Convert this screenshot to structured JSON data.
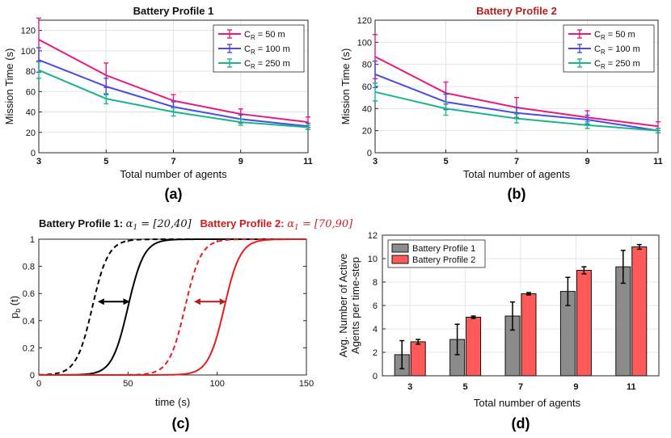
{
  "chart_data": [
    {
      "id": "a",
      "type": "line",
      "title": "Battery Profile 1",
      "title_color": "#111111",
      "panel_label": "(a)",
      "xlabel": "Total number of agents",
      "ylabel": "Mission Time (s)",
      "x": [
        3,
        5,
        7,
        9,
        11
      ],
      "xlim": [
        3,
        11
      ],
      "ylim": [
        0,
        130
      ],
      "yticks": [
        0,
        20,
        40,
        60,
        80,
        100,
        120
      ],
      "legend_position": "top-right",
      "series": [
        {
          "name": "= 50 m",
          "sub": "R",
          "prefix": "C",
          "color": "#e6197d",
          "values": [
            111,
            76,
            51,
            38,
            30
          ],
          "err": [
            21,
            12,
            6,
            5,
            5
          ]
        },
        {
          "name": "= 100 m",
          "sub": "R",
          "prefix": "C",
          "color": "#4a4ae6",
          "values": [
            91,
            65,
            45,
            33,
            26
          ],
          "err": [
            12,
            8,
            5,
            4,
            3
          ]
        },
        {
          "name": "= 250 m",
          "sub": "R",
          "prefix": "C",
          "color": "#19b48c",
          "values": [
            81,
            53,
            40,
            30,
            25
          ],
          "err": [
            8,
            5,
            4,
            3,
            2
          ]
        }
      ]
    },
    {
      "id": "b",
      "type": "line",
      "title": "Battery Profile 2",
      "title_color": "#b41e1e",
      "panel_label": "(b)",
      "xlabel": "Total number of agents",
      "ylabel": "Mission Time (s)",
      "x": [
        3,
        5,
        7,
        9,
        11
      ],
      "xlim": [
        3,
        11
      ],
      "ylim": [
        0,
        120
      ],
      "yticks": [
        0,
        20,
        40,
        60,
        80,
        100,
        120
      ],
      "legend_position": "top-right",
      "series": [
        {
          "name": "= 50 m",
          "sub": "R",
          "prefix": "C",
          "color": "#e6197d",
          "values": [
            87,
            54,
            41,
            32,
            24
          ],
          "err": [
            20,
            10,
            9,
            6,
            4
          ]
        },
        {
          "name": "= 100 m",
          "sub": "R",
          "prefix": "C",
          "color": "#4a4ae6",
          "values": [
            71,
            46,
            36,
            30,
            20
          ],
          "err": [
            12,
            7,
            5,
            4,
            2
          ]
        },
        {
          "name": "= 250 m",
          "sub": "R",
          "prefix": "C",
          "color": "#19b48c",
          "values": [
            55,
            40,
            31,
            25,
            20
          ],
          "err": [
            8,
            6,
            4,
            3,
            2
          ]
        }
      ]
    },
    {
      "id": "c",
      "type": "line",
      "title_parts": [
        {
          "text": "Battery Profile 1: ",
          "color": "#111111",
          "style": "bold"
        },
        {
          "text": "α",
          "color": "#111111",
          "style": "math"
        },
        {
          "text": "1",
          "color": "#111111",
          "style": "mathsub"
        },
        {
          "text": " = [20,40]",
          "color": "#111111",
          "style": "math"
        },
        {
          "text": "   Battery Profile 2: ",
          "color": "#c81e1e",
          "style": "bold"
        },
        {
          "text": "α",
          "color": "#c81e1e",
          "style": "math"
        },
        {
          "text": "1",
          "color": "#c81e1e",
          "style": "mathsub"
        },
        {
          "text": " = [70,90]",
          "color": "#c81e1e",
          "style": "math"
        }
      ],
      "panel_label": "(c)",
      "xlabel": "time (s)",
      "ylabel": "p",
      "ylabel_sub": "b",
      "ylabel_suffix": " (t)",
      "xlim": [
        0,
        150
      ],
      "ylim": [
        0,
        1
      ],
      "xticks": [
        0,
        50,
        100,
        150
      ],
      "yticks": [
        0,
        0.2,
        0.4,
        0.6,
        0.8,
        1
      ],
      "ytick_labels": [
        "0",
        "0.2",
        "0.4",
        "0.6",
        "0.8",
        "1"
      ],
      "series": [
        {
          "name": "profile1-lower",
          "color": "#000000",
          "dashed": true,
          "center": 30,
          "width": 4.5
        },
        {
          "name": "profile1-upper",
          "color": "#000000",
          "dashed": false,
          "center": 50,
          "width": 4.5
        },
        {
          "name": "profile2-lower",
          "color": "#e61e1e",
          "dashed": true,
          "center": 82,
          "width": 4.5
        },
        {
          "name": "profile2-upper",
          "color": "#e61e1e",
          "dashed": false,
          "center": 104,
          "width": 4.5
        }
      ],
      "arrows": [
        {
          "x1": 33,
          "x2": 51,
          "y": 0.54,
          "color": "#000000"
        },
        {
          "x1": 87,
          "x2": 105,
          "y": 0.54,
          "color": "#b41e1e"
        }
      ]
    },
    {
      "id": "d",
      "type": "bar",
      "panel_label": "(d)",
      "xlabel": "Total number of agents",
      "ylabel_lines": [
        "Avg. Number of Active",
        "Agents per time-step"
      ],
      "categories": [
        "3",
        "5",
        "7",
        "9",
        "11"
      ],
      "ylim": [
        0,
        12
      ],
      "yticks": [
        0,
        2,
        4,
        6,
        8,
        10,
        12
      ],
      "legend_position": "top-left",
      "series": [
        {
          "name": "Battery Profile 1",
          "color": "#8c8c8c",
          "values": [
            1.8,
            3.1,
            5.1,
            7.2,
            9.3
          ],
          "err": [
            1.2,
            1.3,
            1.2,
            1.2,
            1.4
          ]
        },
        {
          "name": "Battery Profile 2",
          "color": "#ff5a5a",
          "values": [
            2.9,
            5.0,
            7.0,
            9.0,
            11.0
          ],
          "err": [
            0.2,
            0.1,
            0.1,
            0.3,
            0.2
          ]
        }
      ]
    }
  ]
}
